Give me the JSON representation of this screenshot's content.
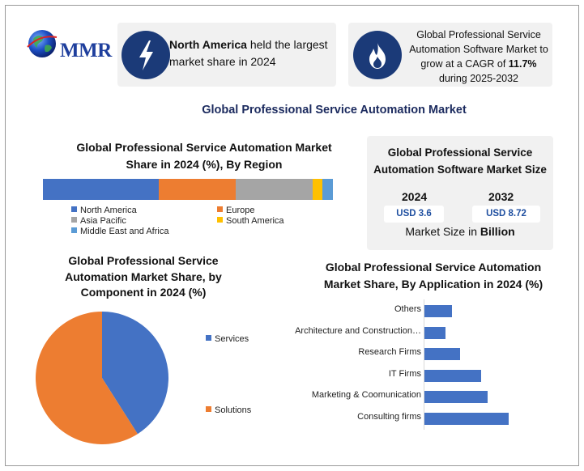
{
  "brand": {
    "logo_text": "MMR"
  },
  "card_left": {
    "icon": "lightning-bolt-icon",
    "region": "North America",
    "text": " held the largest market share in 2024"
  },
  "card_right": {
    "icon": "flame-icon",
    "text_before": "Global Professional Service Automation Software Market to grow at a CAGR of ",
    "cagr": "11.7%",
    "text_after": " during 2025-2032"
  },
  "main_title": "Global Professional Service Automation Market",
  "colors": {
    "blue": "#4472c4",
    "orange": "#ed7d31",
    "gray": "#a5a5a5",
    "yellow": "#ffc000",
    "light_blue": "#5b9bd5",
    "icon_bg": "#1b3a78"
  },
  "market_size": {
    "title": "Global Professional Service Automation Software Market Size",
    "year1": "2024",
    "value1": "USD 3.6",
    "year2": "2032",
    "value2": "USD 8.72",
    "footer_plain": "Market Size in ",
    "footer_bold": "Billion"
  },
  "chart_data": [
    {
      "type": "bar",
      "orientation": "stacked-horizontal",
      "title": "Global Professional Service Automation Market Share in 2024 (%), By Region",
      "categories": [
        "North America",
        "Europe",
        "Asia Pacific",
        "South America",
        "Middle East and Africa"
      ],
      "values": [
        40,
        26.5,
        26.5,
        3.5,
        3.5
      ],
      "colors": [
        "#4472c4",
        "#ed7d31",
        "#a5a5a5",
        "#ffc000",
        "#5b9bd5"
      ],
      "legend": "bottom"
    },
    {
      "type": "pie",
      "title": "Global Professional Service Automation Market Share, by Component in 2024 (%)",
      "categories": [
        "Services",
        "Solutions"
      ],
      "values": [
        41,
        59
      ],
      "colors": [
        "#4472c4",
        "#ed7d31"
      ],
      "legend": "right"
    },
    {
      "type": "bar",
      "orientation": "horizontal",
      "title": "Global Professional Service Automation Market Share, By Application in 2024 (%)",
      "categories": [
        "Others",
        "Architecture and Construction…",
        "Research Firms",
        "IT Firms",
        "Marketing & Coomunication",
        "Consulting firms"
      ],
      "values": [
        6.5,
        5,
        8.5,
        13.5,
        15,
        20
      ],
      "colors": [
        "#4472c4"
      ],
      "grid": false
    }
  ]
}
